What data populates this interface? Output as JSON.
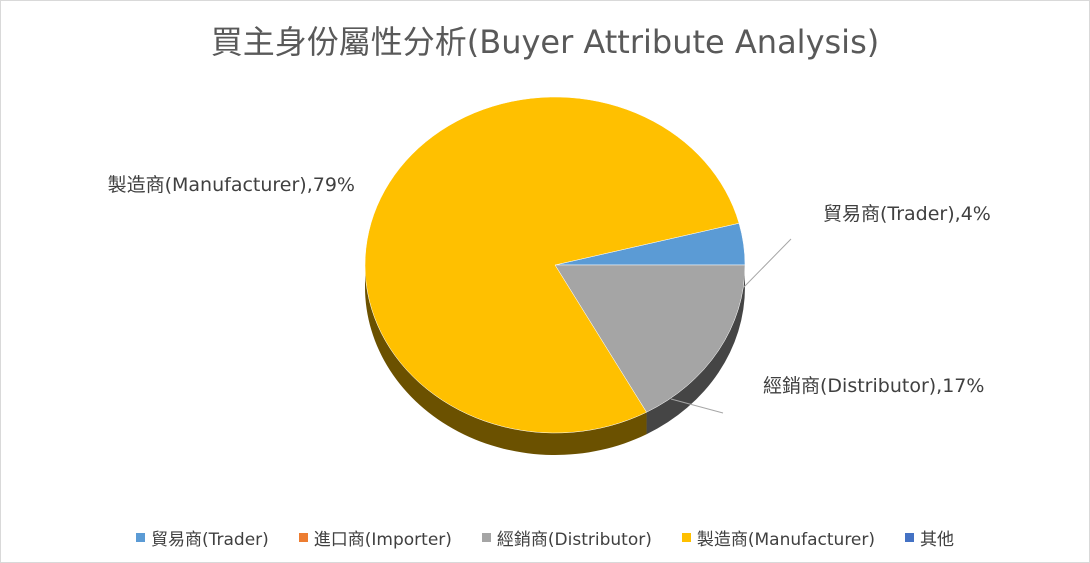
{
  "chart_data": {
    "type": "pie",
    "title": "買主身份屬性分析(Buyer Attribute Analysis)",
    "style": "3d",
    "legend_position": "bottom",
    "series": [
      {
        "name": "貿易商(Trader)",
        "value": 4,
        "color": "#5B9BD5",
        "data_label": "貿易商(Trader),4%"
      },
      {
        "name": "進口商(Importer)",
        "value": 0,
        "color": "#ED7D31",
        "data_label": ""
      },
      {
        "name": "經銷商(Distributor)",
        "value": 17,
        "color": "#A5A5A5",
        "data_label": "經銷商(Distributor),17%"
      },
      {
        "name": "製造商(Manufacturer)",
        "value": 79,
        "color": "#FFC000",
        "data_label": "製造商(Manufacturer),79%"
      },
      {
        "name": "其他",
        "value": 0,
        "color": "#4472C4",
        "data_label": ""
      }
    ]
  }
}
